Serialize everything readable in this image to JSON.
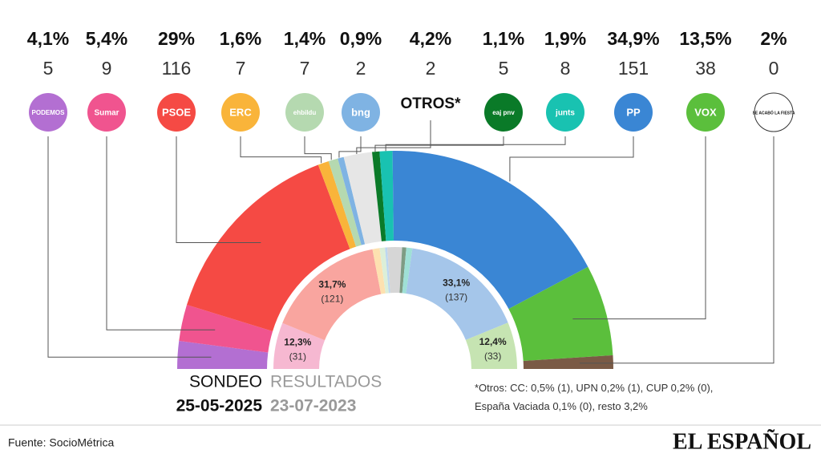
{
  "chart_data": {
    "type": "half-donut",
    "categories": [
      "PODEMOS",
      "Sumar",
      "PSOE",
      "ERC",
      "ehbildu",
      "bng",
      "OTROS*",
      "eaj pnv",
      "junts",
      "PP",
      "VOX",
      "SE ACABÓ LA FIESTA"
    ],
    "series": [
      {
        "name": "SONDEO",
        "date": "25-05-2025",
        "values": [
          4.1,
          5.4,
          29,
          1.6,
          1.4,
          0.9,
          4.2,
          1.1,
          1.9,
          34.9,
          13.5,
          2
        ],
        "value_labels": [
          "4,1%",
          "5,4%",
          "29%",
          "1,6%",
          "1,4%",
          "0,9%",
          "4,2%",
          "1,1%",
          "1,9%",
          "34,9%",
          "13,5%",
          "2%"
        ],
        "seats": [
          5,
          9,
          116,
          7,
          7,
          2,
          2,
          5,
          8,
          151,
          38,
          0
        ],
        "colors": [
          "#b36fd2",
          "#f0548f",
          "#f54a44",
          "#f9b43a",
          "#b5d9b0",
          "#7fb3e3",
          "#e6e6e6",
          "#0a7a28",
          "#19c2b1",
          "#3a86d4",
          "#5bbf3c",
          "#7a5a45"
        ]
      },
      {
        "name": "RESULTADOS",
        "date": "23-07-2023",
        "values": [
          null,
          12.3,
          31.7,
          1.9,
          1.4,
          0.6,
          3.9,
          1.1,
          1.6,
          33.1,
          12.4,
          null
        ],
        "value_labels": [
          null,
          "12,3%",
          "31,7%",
          null,
          null,
          null,
          null,
          null,
          null,
          "33,1%",
          "12,4%",
          null
        ],
        "seats": [
          null,
          31,
          121,
          null,
          null,
          null,
          null,
          null,
          null,
          137,
          33,
          null
        ],
        "seat_labels": [
          null,
          "(31)",
          "(121)",
          null,
          null,
          null,
          null,
          null,
          null,
          "(137)",
          "(33)",
          null
        ],
        "colors": [
          "#dcc0ea",
          "#f6b8d1",
          "#f9a59f",
          "#fde1b0",
          "#dcefd8",
          "#bcd7f1",
          "#d6d6d6",
          "#7e9c84",
          "#9fe0d6",
          "#a5c6ea",
          "#c6e4b2",
          "#c0b0a4"
        ]
      }
    ],
    "note": "*Otros: CC: 0,5% (1), UPN 0,2% (1), CUP 0,2% (0), España Vaciada 0,1% (0), resto 3,2%",
    "source": "Fuente: SocioMétrica",
    "brand": "EL ESPAÑOL"
  }
}
